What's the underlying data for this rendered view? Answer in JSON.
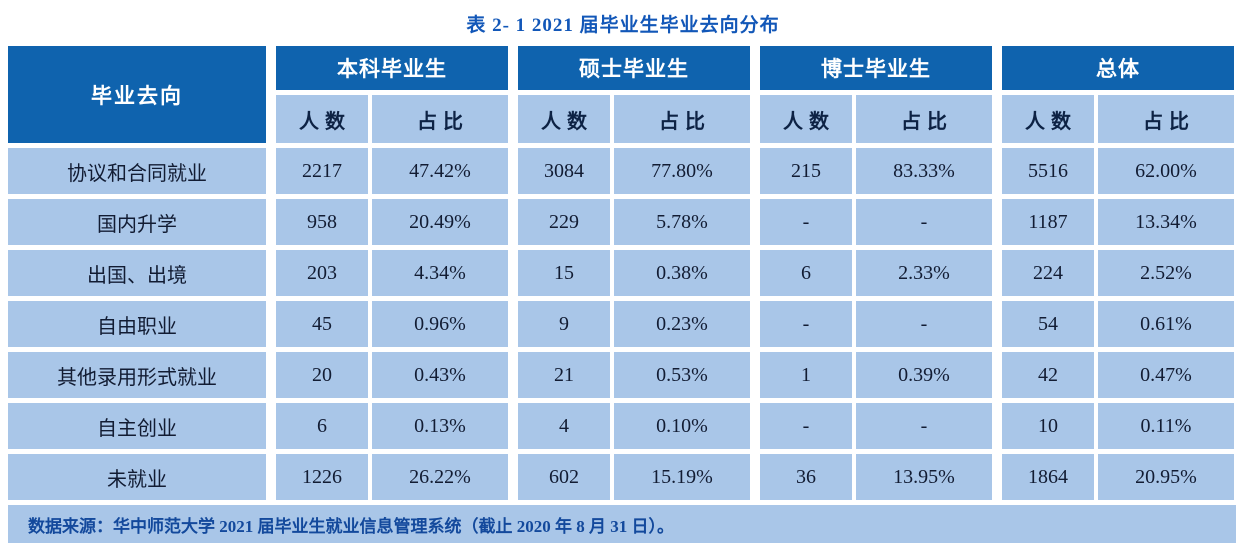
{
  "title": "表 2- 1  2021 届毕业生毕业去向分布",
  "table": {
    "corner_header": "毕业去向",
    "groups": [
      {
        "label": "本科毕业生"
      },
      {
        "label": "硕士毕业生"
      },
      {
        "label": "博士毕业生"
      },
      {
        "label": "总体"
      }
    ],
    "sub_headers": {
      "count": "人数",
      "ratio": "占比"
    },
    "rows": [
      {
        "label": "协议和合同就业",
        "cells": [
          "2217",
          "47.42%",
          "3084",
          "77.80%",
          "215",
          "83.33%",
          "5516",
          "62.00%"
        ]
      },
      {
        "label": "国内升学",
        "cells": [
          "958",
          "20.49%",
          "229",
          "5.78%",
          "-",
          "-",
          "1187",
          "13.34%"
        ]
      },
      {
        "label": "出国、出境",
        "cells": [
          "203",
          "4.34%",
          "15",
          "0.38%",
          "6",
          "2.33%",
          "224",
          "2.52%"
        ]
      },
      {
        "label": "自由职业",
        "cells": [
          "45",
          "0.96%",
          "9",
          "0.23%",
          "-",
          "-",
          "54",
          "0.61%"
        ]
      },
      {
        "label": "其他录用形式就业",
        "cells": [
          "20",
          "0.43%",
          "21",
          "0.53%",
          "1",
          "0.39%",
          "42",
          "0.47%"
        ]
      },
      {
        "label": "自主创业",
        "cells": [
          "6",
          "0.13%",
          "4",
          "0.10%",
          "-",
          "-",
          "10",
          "0.11%"
        ]
      },
      {
        "label": "未就业",
        "cells": [
          "1226",
          "26.22%",
          "602",
          "15.19%",
          "36",
          "13.95%",
          "1864",
          "20.95%"
        ]
      }
    ],
    "footer": "数据来源：华中师范大学 2021 届毕业生就业信息管理系统（截止 2020 年 8 月 31 日）。"
  },
  "colors": {
    "header_bg": "#0f63ae",
    "cell_bg": "#a9c6e8",
    "title_color": "#1257b8",
    "footer_text": "#13499c",
    "cell_text": "#121c33"
  }
}
